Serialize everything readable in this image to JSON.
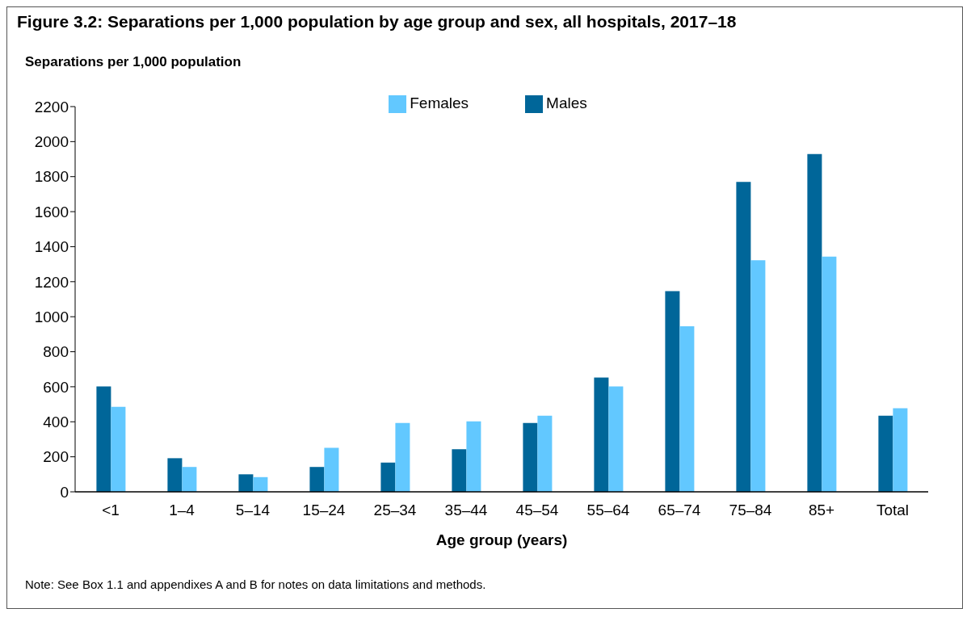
{
  "chart_data": {
    "type": "bar",
    "title": "Figure 3.2: Separations per 1,000 population by age group and sex, all hospitals, 2017–18",
    "ylabel": "Separations per 1,000 population",
    "xlabel": "Age group (years)",
    "categories": [
      "<1",
      "1–4",
      "5–14",
      "15–24",
      "25–34",
      "35–44",
      "45–54",
      "55–64",
      "65–74",
      "75–84",
      "85+",
      "Total"
    ],
    "series": [
      {
        "name": "Males",
        "color": "#006699",
        "values": [
          602,
          192,
          100,
          142,
          167,
          243,
          393,
          653,
          1146,
          1770,
          1929,
          435
        ]
      },
      {
        "name": "Females",
        "color": "#62c8ff",
        "values": [
          485,
          142,
          84,
          251,
          393,
          402,
          435,
          602,
          946,
          1322,
          1343,
          477
        ]
      }
    ],
    "ylim": [
      0,
      2200
    ],
    "yticks": [
      0,
      200,
      400,
      600,
      800,
      1000,
      1200,
      1400,
      1600,
      1800,
      2000,
      2200
    ],
    "grid": false,
    "legend": "top",
    "annotations": [
      "Note: See Box 1.1 and appendixes A and B for notes on data limitations and methods."
    ]
  }
}
